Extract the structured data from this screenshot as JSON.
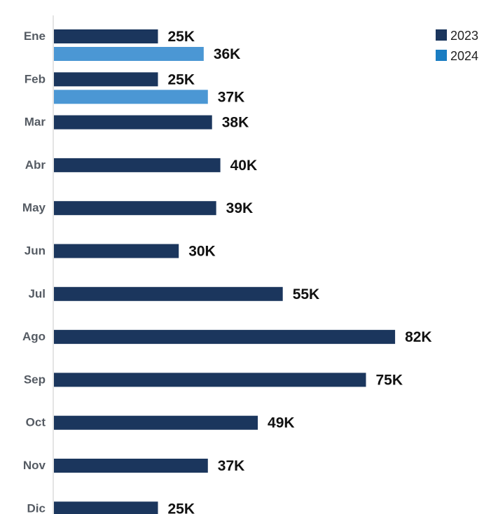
{
  "chart_data": {
    "type": "bar",
    "orientation": "horizontal",
    "categories": [
      "Ene",
      "Feb",
      "Mar",
      "Abr",
      "May",
      "Jun",
      "Jul",
      "Ago",
      "Sep",
      "Oct",
      "Nov",
      "Dic"
    ],
    "series": [
      {
        "name": "2023",
        "color": "#1b365d",
        "values": [
          25,
          25,
          38,
          40,
          39,
          30,
          55,
          82,
          75,
          49,
          37,
          25
        ],
        "labels": [
          "25K",
          "25K",
          "38K",
          "40K",
          "39K",
          "30K",
          "55K",
          "82K",
          "75K",
          "49K",
          "37K",
          "25K"
        ]
      },
      {
        "name": "2024",
        "color": "#4b97d4",
        "values": [
          36,
          37,
          null,
          null,
          null,
          null,
          null,
          null,
          null,
          null,
          null,
          null
        ],
        "labels": [
          "36K",
          "37K",
          null,
          null,
          null,
          null,
          null,
          null,
          null,
          null,
          null,
          null
        ]
      }
    ],
    "xlim": [
      0,
      100
    ],
    "grid": false,
    "legend_position": "top-right",
    "legend_color_2024": "#1a7dc2"
  }
}
